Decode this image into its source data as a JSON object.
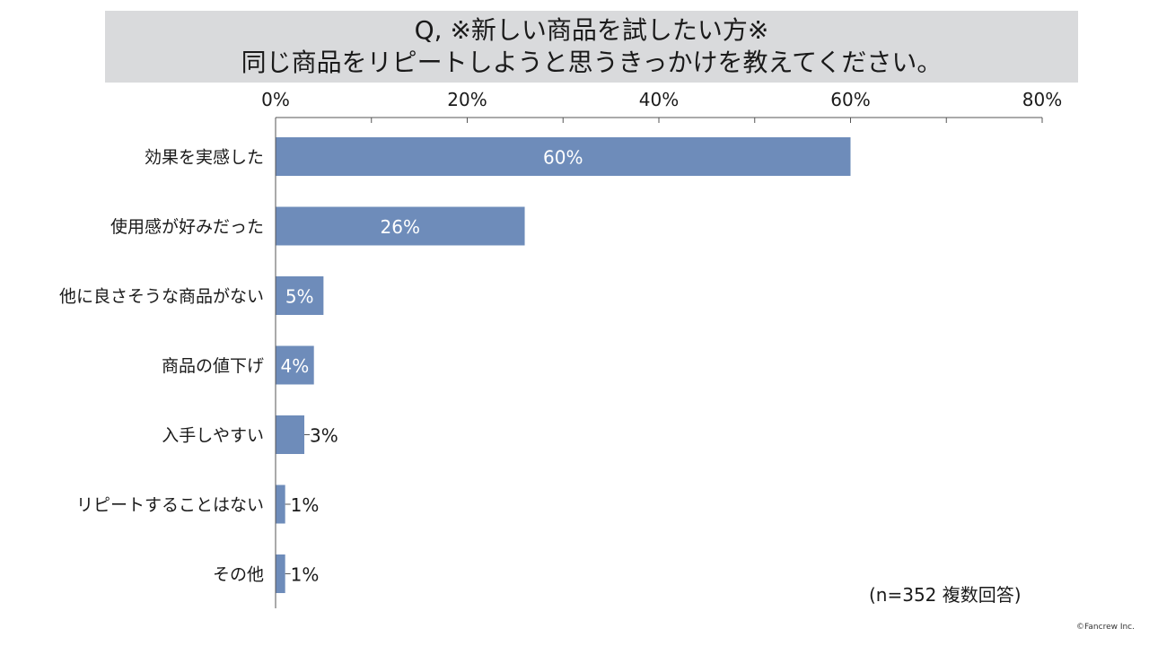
{
  "chart_data": {
    "type": "bar",
    "orientation": "horizontal",
    "title_lines": [
      "Q, ※新しい商品を試したい方※",
      "同じ商品をリピートしようと思うきっかけを教えてください。"
    ],
    "categories": [
      "効果を実感した",
      "使用感が好みだった",
      "他に良さそうな商品がない",
      "商品の値下げ",
      "入手しやすい",
      "リピートすることはない",
      "その他"
    ],
    "values": [
      60,
      26,
      5,
      4,
      3,
      1,
      1
    ],
    "value_labels": [
      "60%",
      "26%",
      "5%",
      "4%",
      "3%",
      "1%",
      "1%"
    ],
    "xlim": [
      0,
      80
    ],
    "tick_labels": [
      "0%",
      "20%",
      "40%",
      "60%",
      "80%"
    ],
    "tick_values": [
      0,
      20,
      40,
      60,
      80
    ],
    "note": "(n=352 複数回答)",
    "copyright": "©Fancrew Inc.",
    "grid": false,
    "colors": {
      "bar": "#6e8cba",
      "title_bg": "#d9dadc",
      "axis": "#555555",
      "inner_label": "#ffffff",
      "outer_label": "#1a1a1a"
    }
  }
}
